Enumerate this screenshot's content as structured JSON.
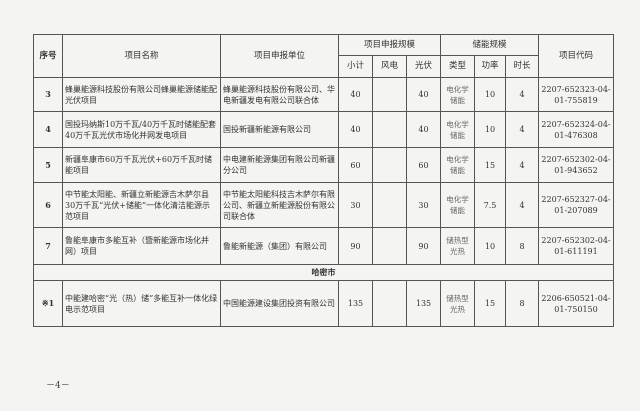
{
  "headers": {
    "seq": "序号",
    "name": "项目名称",
    "unit": "项目申报单位",
    "scale": "项目申报规模",
    "subtotal": "小计",
    "wind": "风电",
    "pv": "光伏",
    "storage": "储能规模",
    "type": "类型",
    "power": "功率",
    "duration": "时长",
    "code": "项目代码"
  },
  "rows": [
    {
      "seq": "3",
      "name": "蜂巢能源科技股份有限公司蜂巢能源储能配光伏项目",
      "unit": "蜂巢能源科技股份有限公司、华电新疆发电有限公司联合体",
      "subtotal": "40",
      "wind": "",
      "pv": "40",
      "type": "电化学储能",
      "power": "10",
      "duration": "4",
      "code": "2207-652323-04-01-755819"
    },
    {
      "seq": "4",
      "name": "国投玛纳斯10万千瓦/40万千瓦时储能配套40万千瓦光伏市场化并网发电项目",
      "unit": "国投新疆新能源有限公司",
      "subtotal": "40",
      "wind": "",
      "pv": "40",
      "type": "电化学储能",
      "power": "10",
      "duration": "4",
      "code": "2207-652324-04-01-476308"
    },
    {
      "seq": "5",
      "name": "新疆阜康市60万千瓦光伏+60万千瓦时储能项目",
      "unit": "中电建新能源集团有限公司新疆分公司",
      "subtotal": "60",
      "wind": "",
      "pv": "60",
      "type": "电化学储能",
      "power": "15",
      "duration": "4",
      "code": "2207-652302-04-01-943652"
    },
    {
      "seq": "6",
      "name": "中节能太阳能、新疆立新能源吉木萨尔县30万千瓦“光伏+储能”一体化清洁能源示范项目",
      "unit": "中节能太阳能科技吉木萨尔有限公司、新疆立新能源股份有限公司联合体",
      "subtotal": "30",
      "wind": "",
      "pv": "30",
      "type": "电化学储能",
      "power": "7.5",
      "duration": "4",
      "code": "2207-652327-04-01-207089"
    },
    {
      "seq": "7",
      "name": "鲁能阜康市多能互补（暨新能源市场化并网）项目",
      "unit": "鲁能新能源（集团）有限公司",
      "subtotal": "90",
      "wind": "",
      "pv": "90",
      "type": "储热型光热",
      "power": "10",
      "duration": "8",
      "code": "2207-652302-04-01-611191"
    }
  ],
  "section": "哈密市",
  "section_rows": [
    {
      "seq": "※1",
      "name": "中能建哈密“光（热）储”多能互补一体化绿电示范项目",
      "unit": "中国能源建设集团投资有限公司",
      "subtotal": "135",
      "wind": "",
      "pv": "135",
      "type": "储热型光热",
      "power": "15",
      "duration": "8",
      "code": "2206-650521-04-01-750150"
    }
  ],
  "page_number": "－4－"
}
